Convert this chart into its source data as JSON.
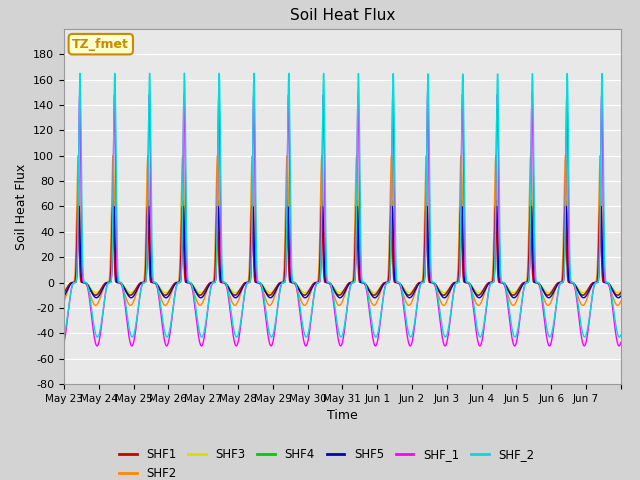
{
  "title": "Soil Heat Flux",
  "xlabel": "Time",
  "ylabel": "Soil Heat Flux",
  "ylim": [
    -80,
    200
  ],
  "yticks": [
    -80,
    -60,
    -40,
    -20,
    0,
    20,
    40,
    60,
    80,
    100,
    120,
    140,
    160,
    180
  ],
  "background_color": "#d3d3d3",
  "plot_bg_color": "#e8e8e8",
  "line_colors": {
    "SHF1": "#cc0000",
    "SHF2": "#ff8800",
    "SHF3": "#dddd00",
    "SHF4": "#00cc00",
    "SHF5": "#0000cc",
    "SHF_1": "#ff00ff",
    "SHF_2": "#00dddd"
  },
  "annotation_text": "TZ_fmet",
  "annotation_bg": "#ffffcc",
  "annotation_border": "#cc8800",
  "n_days": 16,
  "peaks": {
    "SHF1": 60,
    "SHF2": 100,
    "SHF3": 65,
    "SHF4": 65,
    "SHF5": 60,
    "SHF_1": 148,
    "SHF_2": 165
  },
  "troughs": {
    "SHF1": -10,
    "SHF2": -18,
    "SHF3": -8,
    "SHF4": -10,
    "SHF5": -12,
    "SHF_1": -50,
    "SHF_2": -43
  },
  "phase_offsets": {
    "SHF1": 0.05,
    "SHF2": 0.04,
    "SHF3": 0.03,
    "SHF4": 0.03,
    "SHF5": 0.02,
    "SHF_1": 0.0,
    "SHF_2": -0.01
  },
  "sharpness": {
    "SHF1": 12,
    "SHF2": 6,
    "SHF3": 12,
    "SHF4": 12,
    "SHF5": 12,
    "SHF_1": 10,
    "SHF_2": 8
  },
  "x_tick_labels": [
    "May 23",
    "May 24",
    "May 25",
    "May 26",
    "May 27",
    "May 28",
    "May 29",
    "May 30",
    "May 31",
    "Jun 1",
    "Jun 2",
    "Jun 3",
    "Jun 4",
    "Jun 5",
    "Jun 6",
    "Jun 7"
  ],
  "draw_order": [
    "SHF3",
    "SHF4",
    "SHF2",
    "SHF1",
    "SHF5",
    "SHF_1",
    "SHF_2"
  ],
  "legend_order": [
    "SHF1",
    "SHF2",
    "SHF3",
    "SHF4",
    "SHF5",
    "SHF_1",
    "SHF_2"
  ]
}
